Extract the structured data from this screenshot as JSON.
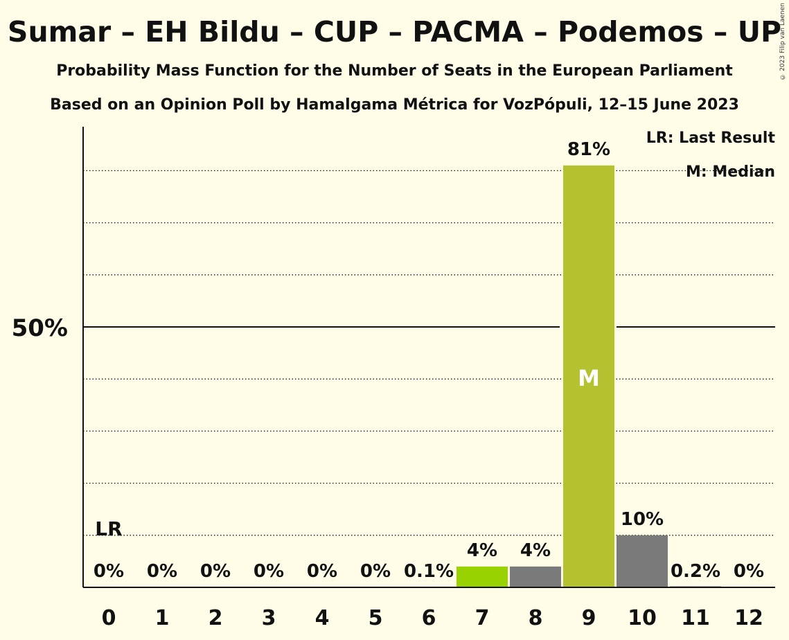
{
  "title": "Sumar – EH Bildu – CUP – PACMA – Podemos – UP",
  "subtitle": "Probability Mass Function for the Number of Seats in the European Parliament",
  "subtitle2": "Based on an Opinion Poll by Hamalgama Métrica for VozPópuli, 12–15 June 2023",
  "copyright": "© 2023 Filip van Laenen",
  "legend": {
    "last_result": "LR: Last Result",
    "median": "M: Median"
  },
  "colors": {
    "background": "#fffde8",
    "grey_bar": "#7a7a7a",
    "median_bar": "#b5c22f",
    "highlight_bar": "#98d200"
  },
  "chart_data": {
    "type": "bar",
    "categories": [
      "0",
      "1",
      "2",
      "3",
      "4",
      "5",
      "6",
      "7",
      "8",
      "9",
      "10",
      "11",
      "12"
    ],
    "values": [
      0,
      0,
      0,
      0,
      0,
      0,
      0.1,
      4,
      4,
      81,
      10,
      0.2,
      0
    ],
    "labels": [
      "0%",
      "0%",
      "0%",
      "0%",
      "0%",
      "0%",
      "0.1%",
      "4%",
      "4%",
      "81%",
      "10%",
      "0.2%",
      "0%"
    ],
    "bar_colors": [
      "#7a7a7a",
      "#7a7a7a",
      "#7a7a7a",
      "#7a7a7a",
      "#7a7a7a",
      "#7a7a7a",
      "#7a7a7a",
      "#98d200",
      "#7a7a7a",
      "#b5c22f",
      "#7a7a7a",
      "#7a7a7a",
      "#7a7a7a"
    ],
    "ylim": [
      0,
      90
    ],
    "ytick_label": "50%",
    "ytick_value": 50,
    "gridlines": [
      10,
      20,
      30,
      40,
      60,
      70,
      80
    ],
    "last_result_seat": 0,
    "last_result_label": "LR",
    "median_seat": 9,
    "median_label": "M"
  }
}
